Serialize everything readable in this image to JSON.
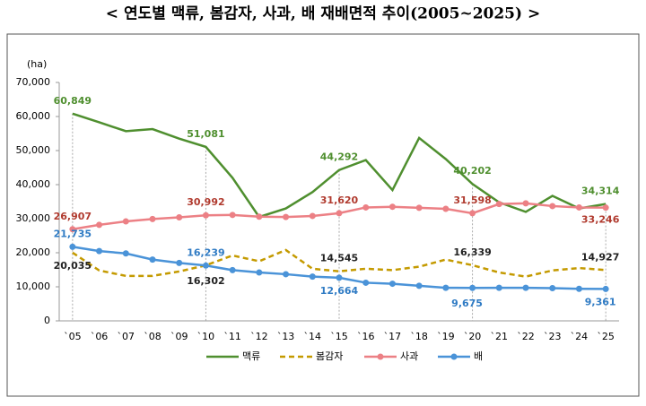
{
  "chart_data": {
    "type": "line",
    "title": "< 연도별 맥류, 봄감자, 사과, 배 재배면적 추이(2005~2025) >",
    "y_label": "(ha)",
    "categories": [
      "`05",
      "`06",
      "`07",
      "`08",
      "`09",
      "`10",
      "`11",
      "`12",
      "`13",
      "`14",
      "`15",
      "`16",
      "`17",
      "`18",
      "`19",
      "`20",
      "`21",
      "`22",
      "`23",
      "`24",
      "`25"
    ],
    "ylim": [
      0,
      70000
    ],
    "yticks": [
      0,
      {
        "value": 10000,
        "label": "10,000"
      },
      {
        "value": 20000,
        "label": "20,000"
      },
      {
        "value": 30000,
        "label": "30,000"
      },
      {
        "value": 40000,
        "label": "40,000"
      },
      {
        "value": 50000,
        "label": "50,000"
      },
      {
        "value": 60000,
        "label": "60,000"
      },
      {
        "value": 70000,
        "label": "70,000"
      }
    ],
    "series": [
      {
        "name": "맥류",
        "color": "#4f8f2f",
        "values": [
          60849,
          58300,
          55700,
          56300,
          53500,
          51081,
          42000,
          30500,
          33000,
          37800,
          44292,
          47200,
          38400,
          53700,
          47500,
          40202,
          34800,
          32000,
          36700,
          33000,
          34314
        ],
        "value_labels": [
          "60,849",
          null,
          null,
          null,
          null,
          "51,081",
          null,
          null,
          null,
          null,
          "44,292",
          null,
          null,
          null,
          null,
          "40,202",
          null,
          null,
          null,
          null,
          "34,314"
        ]
      },
      {
        "name": "봄감자",
        "color": "#c49a00",
        "dash": true,
        "values": [
          20035,
          14800,
          13200,
          13200,
          14500,
          16302,
          19200,
          17500,
          20800,
          15300,
          14545,
          15300,
          14900,
          15900,
          18000,
          16339,
          14200,
          13000,
          14800,
          15500,
          14927
        ],
        "value_labels": [
          "20,035",
          null,
          null,
          null,
          null,
          "16,302",
          null,
          null,
          null,
          null,
          "14,545",
          null,
          null,
          null,
          null,
          "16,339",
          null,
          null,
          null,
          null,
          "14,927"
        ]
      },
      {
        "name": "사과",
        "color": "#ec8085",
        "marker": true,
        "values": [
          26907,
          28200,
          29200,
          29900,
          30400,
          30992,
          31100,
          30600,
          30500,
          30800,
          31620,
          33300,
          33500,
          33200,
          32900,
          31598,
          34300,
          34500,
          33700,
          33300,
          33246
        ],
        "value_labels": [
          "26,907",
          null,
          null,
          null,
          null,
          "30,992",
          null,
          null,
          null,
          null,
          "31,620",
          null,
          null,
          null,
          null,
          "31,598",
          null,
          null,
          null,
          null,
          "33,246"
        ]
      },
      {
        "name": "배",
        "color": "#4a93d8",
        "marker": true,
        "values": [
          21735,
          20500,
          19800,
          18000,
          17000,
          16239,
          14900,
          14200,
          13700,
          13000,
          12664,
          11200,
          10900,
          10300,
          9700,
          9675,
          9700,
          9700,
          9600,
          9400,
          9361
        ],
        "value_labels": [
          "21,735",
          null,
          null,
          null,
          null,
          "16,239",
          null,
          null,
          null,
          null,
          "12,664",
          null,
          null,
          null,
          null,
          "9,675",
          null,
          null,
          null,
          null,
          "9,361"
        ]
      }
    ]
  }
}
